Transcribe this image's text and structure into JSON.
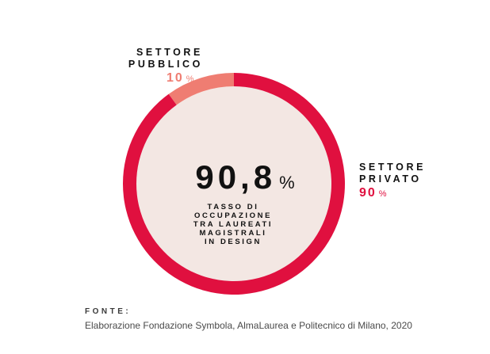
{
  "chart_data": {
    "type": "pie",
    "style": "donut",
    "categories": [
      "SETTORE PUBBLICO",
      "SETTORE PRIVATO"
    ],
    "values": [
      10,
      90
    ],
    "unit": "%",
    "colors": [
      "#ef7d72",
      "#e0103f"
    ],
    "center_fill": "#f3e7e3",
    "center": {
      "value": "90,8",
      "unit": "%",
      "caption": [
        "TASSO DI",
        "OCCUPAZIONE",
        "TRA LAUREATI",
        "MAGISTRALI",
        "IN DESIGN"
      ]
    }
  },
  "labels": {
    "pubblico": {
      "line1": "SETTORE",
      "line2": "PUBBLICO",
      "value": "10",
      "unit": "%"
    },
    "privato": {
      "line1": "SETTORE",
      "line2": "PRIVATO",
      "value": "90",
      "unit": "%"
    }
  },
  "source": {
    "title": "FONTE:",
    "text": "Elaborazione Fondazione Symbola, AlmaLaurea e Politecnico di Milano, 2020"
  }
}
